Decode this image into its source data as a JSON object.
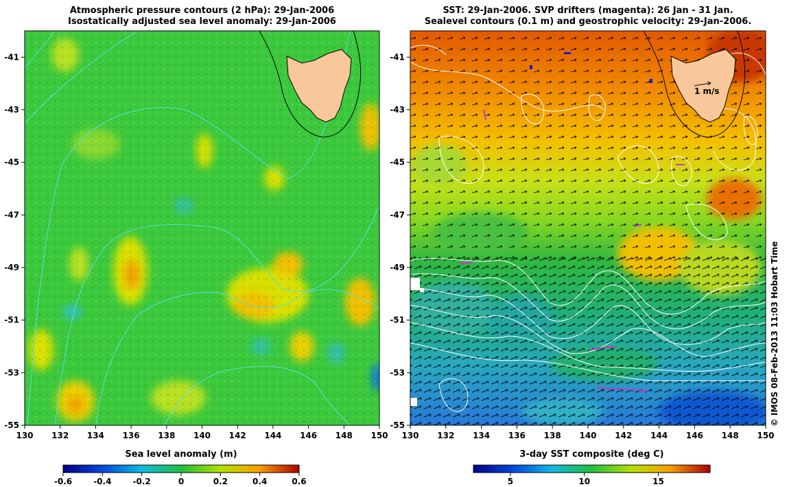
{
  "left_panel": {
    "title_line1": "Atmospheric pressure contours (2 hPa): 29-Jan-2006",
    "title_line2": "Isostatically adjusted sea level anomaly: 29-Jan-2006",
    "x_ticks": [
      "130",
      "132",
      "134",
      "136",
      "138",
      "140",
      "142",
      "144",
      "146",
      "148",
      "150"
    ],
    "y_ticks": [
      "-41",
      "-43",
      "-45",
      "-47",
      "-49",
      "-51",
      "-53",
      "-55"
    ],
    "colorbar_label": "Sea level anomaly (m)",
    "colorbar_ticks": [
      "-0.6",
      "-0.4",
      "-0.2",
      "0",
      "0.2",
      "0.4",
      "0.6"
    ],
    "colors": {
      "land": "#f8c79a",
      "contour": "#55e0e0",
      "base": "#33c833"
    }
  },
  "right_panel": {
    "title_line1": "SST: 29-Jan-2006. SVP drifters (magenta): 26 Jan - 31 Jan.",
    "title_line2": "Sealevel contours (0.1 m) and geostrophic velocity: 29-Jan-2006.",
    "x_ticks": [
      "130",
      "132",
      "134",
      "136",
      "138",
      "140",
      "142",
      "144",
      "146",
      "148",
      "150"
    ],
    "y_ticks": [
      "-41",
      "-43",
      "-45",
      "-47",
      "-49",
      "-51",
      "-53",
      "-55"
    ],
    "scale_label": "1 m/s",
    "colorbar_label": "3-day SST composite (deg C)",
    "colorbar_ticks": [
      "5",
      "10",
      "15"
    ],
    "colors": {
      "land": "#f8c79a",
      "drifter": "#cc33cc",
      "contour": "#ffffff"
    }
  },
  "credit": "© IMOS 08-Feb-2013 11:03 Hobart Time",
  "map_data": {
    "lon_range": [
      130,
      150
    ],
    "lat_range": [
      -55,
      -40
    ],
    "sla_colorbar_range": [
      -0.6,
      0.6
    ],
    "sst_colorbar_range": [
      2.5,
      18.5
    ]
  }
}
